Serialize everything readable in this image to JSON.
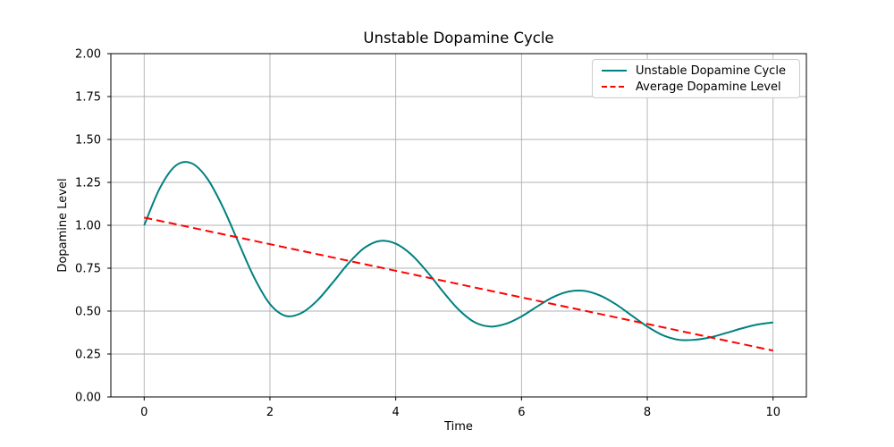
{
  "window": {
    "background": "#ffffff"
  },
  "chart_data": {
    "type": "line",
    "title": "Unstable Dopamine Cycle",
    "xlabel": "Time",
    "ylabel": "Dopamine Level",
    "xlim": [
      -0.53,
      10.53
    ],
    "ylim": [
      0,
      2
    ],
    "grid": true,
    "grid_color": "#b0b0b0",
    "spine_color": "#000000",
    "xticks": {
      "values": [
        0,
        2,
        4,
        6,
        8,
        10
      ],
      "labels": [
        "0",
        "2",
        "4",
        "6",
        "8",
        "10"
      ]
    },
    "yticks": {
      "values": [
        0,
        0.25,
        0.5,
        0.75,
        1.0,
        1.25,
        1.5,
        1.75,
        2.0
      ],
      "labels": [
        "0.00",
        "0.25",
        "0.50",
        "0.75",
        "1.00",
        "1.25",
        "1.50",
        "1.75",
        "2.00"
      ]
    },
    "legend": {
      "position": "upper right"
    },
    "series": [
      {
        "name": "Unstable Dopamine Cycle",
        "color": "#008080",
        "style": "solid",
        "linewidth": 2,
        "x": [
          0,
          0.25,
          0.5,
          0.75,
          1,
          1.25,
          1.5,
          1.75,
          2,
          2.25,
          2.5,
          2.75,
          3,
          3.25,
          3.5,
          3.75,
          4,
          4.25,
          4.5,
          4.75,
          5,
          5.25,
          5.5,
          5.75,
          6,
          6.25,
          6.5,
          6.75,
          7,
          7.25,
          7.5,
          7.75,
          8,
          8.25,
          8.5,
          8.75,
          9,
          9.25,
          9.5,
          9.75,
          10
        ],
        "y": [
          1.0,
          1.217,
          1.347,
          1.362,
          1.274,
          1.107,
          0.899,
          0.695,
          0.541,
          0.472,
          0.489,
          0.561,
          0.667,
          0.779,
          0.868,
          0.909,
          0.893,
          0.829,
          0.729,
          0.614,
          0.509,
          0.436,
          0.41,
          0.426,
          0.469,
          0.527,
          0.581,
          0.614,
          0.618,
          0.591,
          0.54,
          0.475,
          0.41,
          0.359,
          0.333,
          0.333,
          0.347,
          0.372,
          0.399,
          0.422,
          0.434
        ]
      },
      {
        "name": "Average Dopamine Level",
        "color": "#ff0000",
        "style": "dashed",
        "linewidth": 2,
        "x": [
          0,
          10
        ],
        "y": [
          1.045,
          0.27
        ]
      }
    ]
  }
}
